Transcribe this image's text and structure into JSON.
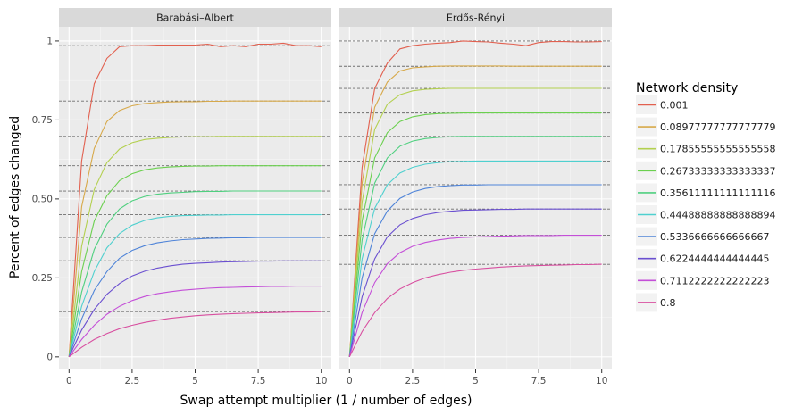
{
  "chart_data": {
    "type": "line",
    "xlabel": "Swap attempt multiplier (1 / number of edges)",
    "ylabel": "Percent of edges changed",
    "xlim": [
      -0.4,
      10.4
    ],
    "ylim": [
      -0.04,
      1.045
    ],
    "x_ticks": [
      0,
      2.5,
      5,
      7.5,
      10
    ],
    "x_tick_labels": [
      "0",
      "2.5",
      "5",
      "7.5",
      "10"
    ],
    "y_ticks": [
      0,
      0.25,
      0.5,
      0.75,
      1
    ],
    "y_tick_labels": [
      "0",
      "0.25",
      "0.50",
      "0.75",
      "1"
    ],
    "legend": {
      "title": "Network density",
      "placement": "right",
      "entries": [
        {
          "label": "0.001",
          "color": "#E2604F"
        },
        {
          "label": "0.08977777777777779",
          "color": "#D7A94A"
        },
        {
          "label": "0.17855555555555558",
          "color": "#B3D04F"
        },
        {
          "label": "0.26733333333333337",
          "color": "#6BD04F"
        },
        {
          "label": "0.35611111111111116",
          "color": "#4FD07F"
        },
        {
          "label": "0.44488888888888894",
          "color": "#4FD0CF"
        },
        {
          "label": "0.5336666666666667",
          "color": "#4F84D8"
        },
        {
          "label": "0.6224444444444445",
          "color": "#6A4FD0"
        },
        {
          "label": "0.7112222222222223",
          "color": "#C44FD8"
        },
        {
          "label": "0.8",
          "color": "#D84FA0"
        }
      ]
    },
    "x": [
      0,
      0.5,
      1,
      1.5,
      2,
      2.5,
      3,
      3.5,
      4,
      4.5,
      5,
      5.5,
      6,
      6.5,
      7,
      7.5,
      8,
      8.5,
      9,
      9.5,
      10
    ],
    "panels": [
      {
        "title": "Barabási–Albert",
        "reference_lines": [
          0.985,
          0.81,
          0.698,
          0.605,
          0.525,
          0.45,
          0.378,
          0.304,
          0.224,
          0.143
        ],
        "series": [
          {
            "values": [
              0,
              0.62,
              0.865,
              0.945,
              0.982,
              0.985,
              0.985,
              0.987,
              0.987,
              0.987,
              0.987,
              0.99,
              0.982,
              0.985,
              0.982,
              0.99,
              0.99,
              0.993,
              0.985,
              0.985,
              0.982
            ]
          },
          {
            "values": [
              0,
              0.475,
              0.66,
              0.745,
              0.78,
              0.795,
              0.802,
              0.805,
              0.807,
              0.808,
              0.808,
              0.809,
              0.809,
              0.81,
              0.81,
              0.81,
              0.81,
              0.81,
              0.81,
              0.81,
              0.81
            ]
          },
          {
            "values": [
              0,
              0.35,
              0.53,
              0.615,
              0.658,
              0.678,
              0.688,
              0.692,
              0.695,
              0.696,
              0.697,
              0.697,
              0.698,
              0.698,
              0.698,
              0.698,
              0.698,
              0.698,
              0.698,
              0.698,
              0.698
            ]
          },
          {
            "values": [
              0,
              0.27,
              0.43,
              0.51,
              0.558,
              0.58,
              0.592,
              0.598,
              0.601,
              0.603,
              0.604,
              0.604,
              0.605,
              0.605,
              0.605,
              0.605,
              0.605,
              0.605,
              0.605,
              0.605,
              0.605
            ]
          },
          {
            "values": [
              0,
              0.205,
              0.34,
              0.42,
              0.468,
              0.494,
              0.508,
              0.515,
              0.519,
              0.521,
              0.523,
              0.524,
              0.524,
              0.525,
              0.525,
              0.525,
              0.525,
              0.525,
              0.525,
              0.525,
              0.525
            ]
          },
          {
            "values": [
              0,
              0.16,
              0.27,
              0.345,
              0.39,
              0.417,
              0.432,
              0.44,
              0.445,
              0.447,
              0.448,
              0.449,
              0.449,
              0.45,
              0.45,
              0.45,
              0.45,
              0.45,
              0.45,
              0.45,
              0.45
            ]
          },
          {
            "values": [
              0,
              0.12,
              0.21,
              0.27,
              0.312,
              0.337,
              0.352,
              0.361,
              0.367,
              0.371,
              0.373,
              0.375,
              0.376,
              0.377,
              0.377,
              0.378,
              0.378,
              0.378,
              0.378,
              0.378,
              0.378
            ]
          },
          {
            "values": [
              0,
              0.085,
              0.15,
              0.198,
              0.232,
              0.256,
              0.271,
              0.281,
              0.288,
              0.293,
              0.296,
              0.298,
              0.3,
              0.301,
              0.302,
              0.303,
              0.303,
              0.304,
              0.304,
              0.304,
              0.304
            ]
          },
          {
            "values": [
              0,
              0.055,
              0.1,
              0.135,
              0.16,
              0.178,
              0.191,
              0.2,
              0.206,
              0.211,
              0.214,
              0.217,
              0.219,
              0.22,
              0.221,
              0.222,
              0.223,
              0.223,
              0.224,
              0.224,
              0.224
            ]
          },
          {
            "values": [
              0,
              0.03,
              0.055,
              0.074,
              0.089,
              0.1,
              0.109,
              0.116,
              0.122,
              0.126,
              0.13,
              0.133,
              0.135,
              0.137,
              0.138,
              0.139,
              0.14,
              0.141,
              0.142,
              0.142,
              0.143
            ]
          }
        ]
      },
      {
        "title": "Erdős-Rényi",
        "reference_lines": [
          1.0,
          0.92,
          0.85,
          0.772,
          0.698,
          0.62,
          0.545,
          0.468,
          0.385,
          0.293
        ],
        "series": [
          {
            "values": [
              0,
              0.6,
              0.85,
              0.93,
              0.975,
              0.985,
              0.99,
              0.993,
              0.995,
              1.0,
              0.998,
              0.997,
              0.993,
              0.99,
              0.985,
              0.995,
              0.998,
              0.998,
              0.997,
              0.997,
              0.998
            ]
          },
          {
            "values": [
              0,
              0.55,
              0.79,
              0.87,
              0.905,
              0.915,
              0.918,
              0.92,
              0.921,
              0.921,
              0.921,
              0.921,
              0.921,
              0.92,
              0.92,
              0.92,
              0.92,
              0.92,
              0.92,
              0.92,
              0.92
            ]
          },
          {
            "values": [
              0,
              0.49,
              0.72,
              0.8,
              0.83,
              0.842,
              0.847,
              0.849,
              0.85,
              0.85,
              0.85,
              0.85,
              0.85,
              0.85,
              0.85,
              0.85,
              0.85,
              0.85,
              0.85,
              0.85,
              0.85
            ]
          },
          {
            "values": [
              0,
              0.43,
              0.63,
              0.71,
              0.745,
              0.76,
              0.767,
              0.77,
              0.771,
              0.772,
              0.772,
              0.772,
              0.772,
              0.772,
              0.772,
              0.772,
              0.772,
              0.772,
              0.772,
              0.772,
              0.772
            ]
          },
          {
            "values": [
              0,
              0.37,
              0.55,
              0.63,
              0.667,
              0.683,
              0.691,
              0.695,
              0.697,
              0.698,
              0.698,
              0.698,
              0.698,
              0.698,
              0.698,
              0.698,
              0.698,
              0.698,
              0.698,
              0.698,
              0.698
            ]
          },
          {
            "values": [
              0,
              0.31,
              0.47,
              0.545,
              0.582,
              0.6,
              0.61,
              0.615,
              0.618,
              0.619,
              0.62,
              0.62,
              0.62,
              0.62,
              0.62,
              0.62,
              0.62,
              0.62,
              0.62,
              0.62,
              0.62
            ]
          },
          {
            "values": [
              0,
              0.25,
              0.39,
              0.462,
              0.502,
              0.522,
              0.533,
              0.539,
              0.542,
              0.544,
              0.544,
              0.545,
              0.545,
              0.545,
              0.545,
              0.545,
              0.545,
              0.545,
              0.545,
              0.545,
              0.545
            ]
          },
          {
            "values": [
              0,
              0.19,
              0.31,
              0.38,
              0.418,
              0.438,
              0.45,
              0.457,
              0.461,
              0.464,
              0.465,
              0.466,
              0.467,
              0.467,
              0.468,
              0.468,
              0.468,
              0.468,
              0.468,
              0.468,
              0.468
            ]
          },
          {
            "values": [
              0,
              0.14,
              0.235,
              0.295,
              0.33,
              0.35,
              0.362,
              0.37,
              0.375,
              0.378,
              0.38,
              0.381,
              0.382,
              0.383,
              0.384,
              0.384,
              0.384,
              0.385,
              0.385,
              0.385,
              0.385
            ]
          },
          {
            "values": [
              0,
              0.08,
              0.14,
              0.185,
              0.215,
              0.235,
              0.25,
              0.26,
              0.268,
              0.274,
              0.278,
              0.281,
              0.284,
              0.286,
              0.288,
              0.289,
              0.29,
              0.291,
              0.292,
              0.292,
              0.293
            ]
          }
        ]
      }
    ]
  }
}
